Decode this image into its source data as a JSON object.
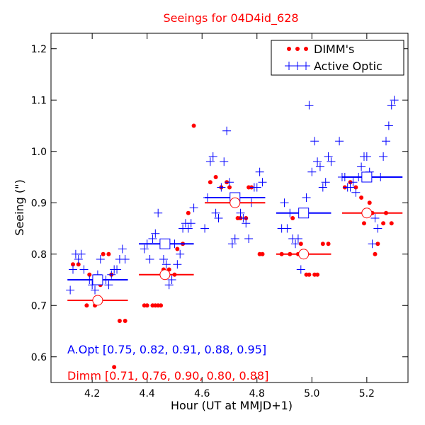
{
  "chart_data": {
    "type": "scatter",
    "title": "Seeings for 04D4id_628",
    "xlabel": "Hour (UT at MMJD+1)",
    "ylabel": "Seeing (\")",
    "xlim": [
      4.05,
      5.35
    ],
    "ylim": [
      0.55,
      1.23
    ],
    "xticks": [
      4.2,
      4.4,
      4.6,
      4.8,
      5.0,
      5.2
    ],
    "xtick_labels": [
      "4.2",
      "4.4",
      "4.6",
      "4.8",
      "5.0",
      "5.2"
    ],
    "yticks": [
      0.6,
      0.7,
      0.8,
      0.9,
      1.0,
      1.1,
      1.2
    ],
    "ytick_labels": [
      "0.6",
      "0.7",
      "0.8",
      "0.9",
      "1.0",
      "1.1",
      "1.2"
    ],
    "legend": {
      "position": "top-right",
      "entries": [
        "DIMM's",
        "Active Optic"
      ]
    },
    "colors": {
      "dimm": "#ff0000",
      "aopt": "#0000ff",
      "title": "#ff0000"
    },
    "series": [
      {
        "name": "DIMM's",
        "marker": "dot",
        "points": [
          [
            4.13,
            0.78
          ],
          [
            4.15,
            0.78
          ],
          [
            4.18,
            0.7
          ],
          [
            4.19,
            0.76
          ],
          [
            4.21,
            0.7
          ],
          [
            4.23,
            0.74
          ],
          [
            4.24,
            0.8
          ],
          [
            4.26,
            0.8
          ],
          [
            4.27,
            0.76
          ],
          [
            4.28,
            0.58
          ],
          [
            4.3,
            0.67
          ],
          [
            4.32,
            0.67
          ],
          [
            4.39,
            0.7
          ],
          [
            4.4,
            0.7
          ],
          [
            4.42,
            0.7
          ],
          [
            4.43,
            0.7
          ],
          [
            4.44,
            0.7
          ],
          [
            4.45,
            0.7
          ],
          [
            4.46,
            0.77
          ],
          [
            4.48,
            0.77
          ],
          [
            4.5,
            0.76
          ],
          [
            4.51,
            0.81
          ],
          [
            4.53,
            0.82
          ],
          [
            4.55,
            0.88
          ],
          [
            4.57,
            1.05
          ],
          [
            4.63,
            0.94
          ],
          [
            4.65,
            0.95
          ],
          [
            4.67,
            0.93
          ],
          [
            4.69,
            0.94
          ],
          [
            4.7,
            0.93
          ],
          [
            4.73,
            0.87
          ],
          [
            4.74,
            0.87
          ],
          [
            4.76,
            0.87
          ],
          [
            4.77,
            0.93
          ],
          [
            4.78,
            0.93
          ],
          [
            4.81,
            0.8
          ],
          [
            4.82,
            0.8
          ],
          [
            4.89,
            0.8
          ],
          [
            4.92,
            0.8
          ],
          [
            4.93,
            0.87
          ],
          [
            4.95,
            0.8
          ],
          [
            4.96,
            0.82
          ],
          [
            4.98,
            0.76
          ],
          [
            4.99,
            0.76
          ],
          [
            5.01,
            0.76
          ],
          [
            5.02,
            0.76
          ],
          [
            5.04,
            0.82
          ],
          [
            5.06,
            0.82
          ],
          [
            5.12,
            0.93
          ],
          [
            5.14,
            0.94
          ],
          [
            5.16,
            0.93
          ],
          [
            5.18,
            0.91
          ],
          [
            5.19,
            0.86
          ],
          [
            5.21,
            0.9
          ],
          [
            5.22,
            0.88
          ],
          [
            5.23,
            0.8
          ],
          [
            5.24,
            0.82
          ],
          [
            5.26,
            0.86
          ],
          [
            5.27,
            0.88
          ],
          [
            5.29,
            0.86
          ]
        ]
      },
      {
        "name": "Active Optic",
        "marker": "plus",
        "points": [
          [
            4.12,
            0.73
          ],
          [
            4.13,
            0.77
          ],
          [
            4.14,
            0.8
          ],
          [
            4.15,
            0.79
          ],
          [
            4.16,
            0.8
          ],
          [
            4.17,
            0.77
          ],
          [
            4.19,
            0.75
          ],
          [
            4.2,
            0.74
          ],
          [
            4.21,
            0.73
          ],
          [
            4.22,
            0.76
          ],
          [
            4.23,
            0.79
          ],
          [
            4.25,
            0.75
          ],
          [
            4.26,
            0.74
          ],
          [
            4.27,
            0.76
          ],
          [
            4.28,
            0.77
          ],
          [
            4.29,
            0.77
          ],
          [
            4.3,
            0.79
          ],
          [
            4.31,
            0.81
          ],
          [
            4.32,
            0.79
          ],
          [
            4.39,
            0.81
          ],
          [
            4.4,
            0.82
          ],
          [
            4.41,
            0.79
          ],
          [
            4.42,
            0.83
          ],
          [
            4.43,
            0.84
          ],
          [
            4.44,
            0.88
          ],
          [
            4.46,
            0.79
          ],
          [
            4.47,
            0.78
          ],
          [
            4.48,
            0.74
          ],
          [
            4.49,
            0.75
          ],
          [
            4.5,
            0.82
          ],
          [
            4.51,
            0.78
          ],
          [
            4.52,
            0.8
          ],
          [
            4.53,
            0.85
          ],
          [
            4.54,
            0.86
          ],
          [
            4.55,
            0.85
          ],
          [
            4.56,
            0.86
          ],
          [
            4.57,
            0.89
          ],
          [
            4.61,
            0.85
          ],
          [
            4.62,
            0.91
          ],
          [
            4.63,
            0.98
          ],
          [
            4.64,
            0.99
          ],
          [
            4.65,
            0.88
          ],
          [
            4.66,
            0.87
          ],
          [
            4.67,
            0.93
          ],
          [
            4.68,
            0.98
          ],
          [
            4.69,
            1.04
          ],
          [
            4.7,
            0.94
          ],
          [
            4.71,
            0.82
          ],
          [
            4.72,
            0.83
          ],
          [
            4.73,
            0.9
          ],
          [
            4.74,
            0.88
          ],
          [
            4.75,
            0.87
          ],
          [
            4.76,
            0.86
          ],
          [
            4.77,
            0.83
          ],
          [
            4.78,
            0.9
          ],
          [
            4.79,
            0.93
          ],
          [
            4.8,
            0.93
          ],
          [
            4.81,
            0.96
          ],
          [
            4.82,
            0.94
          ],
          [
            4.89,
            0.85
          ],
          [
            4.9,
            0.9
          ],
          [
            4.91,
            0.85
          ],
          [
            4.92,
            0.88
          ],
          [
            4.93,
            0.83
          ],
          [
            4.94,
            0.82
          ],
          [
            4.95,
            0.83
          ],
          [
            4.96,
            0.77
          ],
          [
            4.97,
            0.88
          ],
          [
            4.98,
            0.91
          ],
          [
            4.99,
            1.09
          ],
          [
            5.0,
            0.96
          ],
          [
            5.01,
            1.02
          ],
          [
            5.02,
            0.98
          ],
          [
            5.03,
            0.97
          ],
          [
            5.04,
            0.93
          ],
          [
            5.05,
            0.94
          ],
          [
            5.06,
            0.99
          ],
          [
            5.07,
            0.98
          ],
          [
            5.1,
            1.02
          ],
          [
            5.11,
            0.95
          ],
          [
            5.12,
            0.95
          ],
          [
            5.13,
            0.93
          ],
          [
            5.14,
            0.93
          ],
          [
            5.15,
            0.94
          ],
          [
            5.16,
            0.92
          ],
          [
            5.17,
            0.95
          ],
          [
            5.18,
            0.97
          ],
          [
            5.19,
            0.99
          ],
          [
            5.2,
            0.99
          ],
          [
            5.21,
            0.96
          ],
          [
            5.22,
            0.82
          ],
          [
            5.23,
            0.87
          ],
          [
            5.24,
            0.85
          ],
          [
            5.25,
            0.95
          ],
          [
            5.26,
            0.99
          ],
          [
            5.27,
            1.02
          ],
          [
            5.28,
            1.05
          ],
          [
            5.29,
            1.09
          ],
          [
            5.3,
            1.1
          ]
        ]
      }
    ],
    "bins": [
      {
        "range": [
          4.11,
          4.33
        ],
        "center": 4.22,
        "aopt": 0.75,
        "dimm": 0.71
      },
      {
        "range": [
          4.37,
          4.57
        ],
        "center": 4.465,
        "aopt": 0.82,
        "dimm": 0.76
      },
      {
        "range": [
          4.61,
          4.83
        ],
        "center": 4.72,
        "aopt": 0.91,
        "dimm": 0.9
      },
      {
        "range": [
          4.87,
          5.07
        ],
        "center": 4.97,
        "aopt": 0.88,
        "dimm": 0.8
      },
      {
        "range": [
          5.11,
          5.33
        ],
        "center": 5.2,
        "aopt": 0.95,
        "dimm": 0.88
      }
    ],
    "annotations": {
      "aopt_summary": "A.Opt [0.75, 0.82, 0.91, 0.88, 0.95]",
      "dimm_summary": "Dimm [0.71, 0.76, 0.90, 0.80, 0.88]"
    }
  }
}
